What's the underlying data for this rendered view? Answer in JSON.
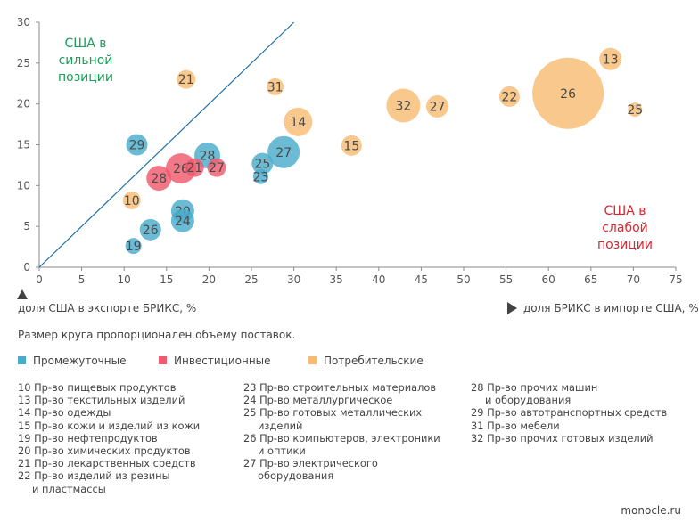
{
  "chart_data": {
    "type": "scatter",
    "title": "",
    "xlabel": "доля БРИКС в импорте США, %",
    "ylabel": "доля США в экспорте БРИКС, %",
    "xlim": [
      0,
      75
    ],
    "ylim": [
      0,
      30
    ],
    "x_ticks": [
      "0",
      "5",
      "10",
      "15",
      "20",
      "25",
      "30",
      "35",
      "40",
      "45",
      "50",
      "55",
      "60",
      "65",
      "70",
      "75"
    ],
    "y_ticks": [
      "0",
      "5",
      "10",
      "15",
      "20",
      "25",
      "30"
    ],
    "diagonal_label": "y = x",
    "regions": {
      "upper_left": {
        "lines": [
          "США в",
          "сильной",
          "позиции"
        ],
        "color": "#1a9f5a"
      },
      "lower_right": {
        "lines": [
          "США в",
          "слабой",
          "позиции"
        ],
        "color": "#d7282f"
      }
    },
    "groups": [
      {
        "name": "Промежуточные",
        "color": "#4aaccc"
      },
      {
        "name": "Инвестиционные",
        "color": "#ef5a6e"
      },
      {
        "name": "Потребительские",
        "color": "#f7bc74"
      }
    ],
    "points": [
      {
        "label": "26",
        "x": 62.3,
        "y": 21.3,
        "size": 40,
        "group": 2
      },
      {
        "label": "32",
        "x": 42.9,
        "y": 19.8,
        "size": 19,
        "group": 2
      },
      {
        "label": "14",
        "x": 30.5,
        "y": 17.8,
        "size": 16,
        "group": 2
      },
      {
        "label": "13",
        "x": 67.3,
        "y": 25.5,
        "size": 12.5,
        "group": 2
      },
      {
        "label": "22",
        "x": 55.4,
        "y": 20.9,
        "size": 11.5,
        "group": 2
      },
      {
        "label": "27",
        "x": 46.9,
        "y": 19.7,
        "size": 12.5,
        "group": 2
      },
      {
        "label": "15",
        "x": 36.8,
        "y": 14.9,
        "size": 11.5,
        "group": 2
      },
      {
        "label": "21",
        "x": 17.3,
        "y": 23.0,
        "size": 10.5,
        "group": 2
      },
      {
        "label": "31",
        "x": 27.8,
        "y": 22.1,
        "size": 9.5,
        "group": 2
      },
      {
        "label": "25",
        "x": 70.2,
        "y": 19.3,
        "size": 8,
        "group": 2
      },
      {
        "label": "10",
        "x": 10.9,
        "y": 8.2,
        "size": 10,
        "group": 2
      },
      {
        "label": "29",
        "x": 11.5,
        "y": 15.0,
        "size": 12,
        "group": 0
      },
      {
        "label": "28",
        "x": 19.8,
        "y": 13.7,
        "size": 14.5,
        "group": 0
      },
      {
        "label": "27",
        "x": 28.8,
        "y": 14.1,
        "size": 18,
        "group": 0
      },
      {
        "label": "25",
        "x": 26.3,
        "y": 12.7,
        "size": 12,
        "group": 0
      },
      {
        "label": "23",
        "x": 26.1,
        "y": 11.1,
        "size": 8.5,
        "group": 0
      },
      {
        "label": "20",
        "x": 16.9,
        "y": 6.9,
        "size": 13,
        "group": 0
      },
      {
        "label": "24",
        "x": 16.9,
        "y": 5.7,
        "size": 13,
        "group": 0
      },
      {
        "label": "26",
        "x": 13.1,
        "y": 4.6,
        "size": 12,
        "group": 0
      },
      {
        "label": "19",
        "x": 11.1,
        "y": 2.6,
        "size": 9,
        "group": 0
      },
      {
        "label": "26",
        "x": 16.7,
        "y": 12.1,
        "size": 17,
        "group": 1
      },
      {
        "label": "28",
        "x": 14.1,
        "y": 10.9,
        "size": 14,
        "group": 1
      },
      {
        "label": "21",
        "x": 18.3,
        "y": 12.2,
        "size": 10.5,
        "group": 1
      },
      {
        "label": "27",
        "x": 20.9,
        "y": 12.2,
        "size": 10.5,
        "group": 1
      }
    ]
  },
  "axis_captions": {
    "y": "доля США в экспорте БРИКС, %",
    "x": "доля БРИКС в импорте США, %"
  },
  "note": "Размер круга пропорционален объему поставок.",
  "legend": [
    "Промежуточные",
    "Инвестиционные",
    "Потребительские"
  ],
  "codes": [
    [
      [
        "10 Пр-во пищевых продуктов"
      ],
      [
        "13 Пр-во текстильных изделий"
      ],
      [
        "14 Пр-во одежды"
      ],
      [
        "15 Пр-во кожи и изделий из кожи"
      ],
      [
        "19 Пр-во нефтепродуктов"
      ],
      [
        "20 Пр-во химических продуктов"
      ],
      [
        "21 Пр-во лекарственных средств"
      ],
      [
        "22 Пр-во изделий из резины",
        "и пластмассы"
      ]
    ],
    [
      [
        "23 Пр-во строительных материалов"
      ],
      [
        "24 Пр-во металлургическое"
      ],
      [
        "25 Пр-во готовых металлических",
        "изделий"
      ],
      [
        "26 Пр-во компьютеров, электроники",
        "и оптики"
      ],
      [
        "27 Пр-во электрического",
        "оборудования"
      ]
    ],
    [
      [
        "28 Пр-во прочих машин",
        "и оборудования"
      ],
      [
        "29 Пр-во автотранспортных средств"
      ],
      [
        "31 Пр-во мебели"
      ],
      [
        "32 Пр-во прочих готовых изделий"
      ]
    ]
  ],
  "source": "monocle.ru"
}
